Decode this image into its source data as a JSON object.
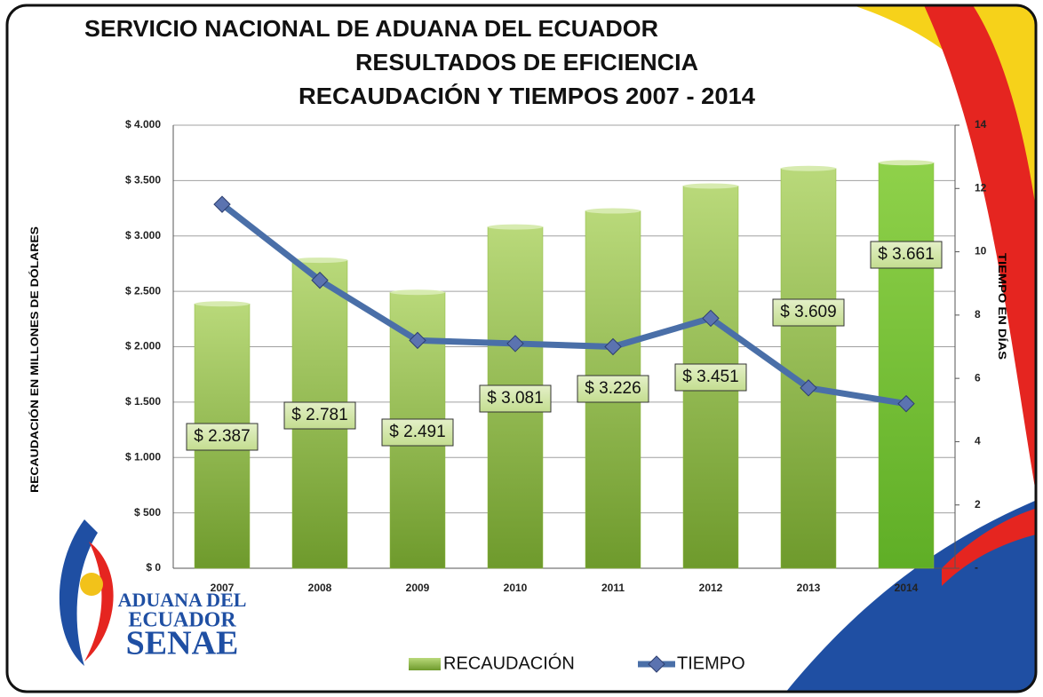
{
  "chart_data": {
    "type": "bar",
    "title": [
      "SERVICIO NACIONAL DE ADUANA DEL ECUADOR",
      "RESULTADOS DE EFICIENCIA",
      "RECAUDACIÓN Y TIEMPOS 2007 - 2014"
    ],
    "y_label": "RECAUDACIÓN  EN MILLONES DE DÓLARES",
    "y2_label": "TIEMPO EN DÍAS",
    "categories": [
      "2007",
      "2008",
      "2009",
      "2010",
      "2011",
      "2012",
      "2013",
      "2014"
    ],
    "series": [
      {
        "name": "RECAUDACIÓN",
        "type": "bar",
        "color": "#8cb83c",
        "values": [
          2387,
          2781,
          2491,
          3081,
          3226,
          3451,
          3609,
          3661
        ],
        "value_labels": [
          "$ 2.387",
          "$ 2.781",
          "$ 2.491",
          "$ 3.081",
          "$ 3.226",
          "$ 3.451",
          "$ 3.609",
          "$ 3.661"
        ]
      },
      {
        "name": "TIEMPO",
        "type": "line",
        "color": "#4a6fa8",
        "axis": "y2",
        "values": [
          11.5,
          9.1,
          7.2,
          7.1,
          7.0,
          7.9,
          5.7,
          5.2
        ]
      }
    ],
    "ylim": [
      0,
      4000
    ],
    "yticks": [
      {
        "value": 0,
        "label": "$ 0"
      },
      {
        "value": 500,
        "label": "$ 500"
      },
      {
        "value": 1000,
        "label": "$ 1.000"
      },
      {
        "value": 1500,
        "label": "$ 1.500"
      },
      {
        "value": 2000,
        "label": "$ 2.000"
      },
      {
        "value": 2500,
        "label": "$ 2.500"
      },
      {
        "value": 3000,
        "label": "$ 3.000"
      },
      {
        "value": 3500,
        "label": "$ 3.500"
      },
      {
        "value": 4000,
        "label": "$ 4.000"
      }
    ],
    "y2lim": [
      0,
      14
    ],
    "y2ticks": [
      {
        "value": 0,
        "label": "-"
      },
      2,
      4,
      6,
      8,
      10,
      12,
      14
    ],
    "grid": true,
    "legend": "bottom"
  },
  "logo": {
    "lines": [
      "ADUANA DEL",
      "ECUADOR",
      "SENAE"
    ]
  }
}
